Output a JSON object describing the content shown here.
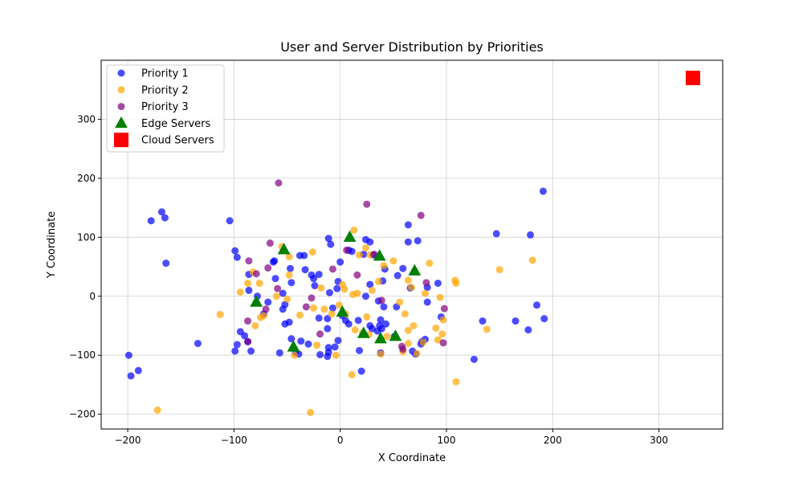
{
  "chart_data": {
    "type": "scatter",
    "title": "User and Server Distribution by Priorities",
    "xlabel": "X Coordinate",
    "ylabel": "Y Coordinate",
    "xlim": [
      -225,
      360
    ],
    "ylim": [
      -225,
      400
    ],
    "x_ticks": [
      -200,
      -100,
      0,
      100,
      200,
      300
    ],
    "y_ticks": [
      -200,
      -100,
      0,
      100,
      200,
      300
    ],
    "grid": true,
    "legend_position": "top-left",
    "series": [
      {
        "name": "Priority 1",
        "marker": "circle",
        "color": "#0000ff",
        "points": [
          [
            -199,
            -100
          ],
          [
            -197,
            -135
          ],
          [
            -190,
            -126
          ],
          [
            -178,
            128
          ],
          [
            -168,
            143
          ],
          [
            -165,
            133
          ],
          [
            -164,
            56
          ],
          [
            -134,
            -80
          ],
          [
            -104,
            128
          ],
          [
            -99,
            77
          ],
          [
            -97,
            66
          ],
          [
            -99,
            -93
          ],
          [
            -97,
            -82
          ],
          [
            -94,
            -60
          ],
          [
            -90,
            -67
          ],
          [
            -87,
            -77
          ],
          [
            -84,
            -93
          ],
          [
            -86,
            10
          ],
          [
            -86,
            37
          ],
          [
            -78,
            0
          ],
          [
            -72,
            -30
          ],
          [
            -68,
            -10
          ],
          [
            -63,
            58
          ],
          [
            -62,
            60
          ],
          [
            -61,
            30
          ],
          [
            -57,
            -96
          ],
          [
            -54,
            -22
          ],
          [
            -54,
            5
          ],
          [
            -52,
            -14
          ],
          [
            -52,
            -47
          ],
          [
            -48,
            -44
          ],
          [
            -47,
            47
          ],
          [
            -46,
            23
          ],
          [
            -46,
            -72
          ],
          [
            -42,
            -95
          ],
          [
            -39,
            -98
          ],
          [
            -38,
            69
          ],
          [
            -37,
            -76
          ],
          [
            -34,
            69
          ],
          [
            -33,
            45
          ],
          [
            -30,
            -81
          ],
          [
            -27,
            36
          ],
          [
            -25,
            30
          ],
          [
            -24,
            18
          ],
          [
            -20,
            37
          ],
          [
            -20,
            -37
          ],
          [
            -19,
            -99
          ],
          [
            -12,
            -102
          ],
          [
            -11,
            -95
          ],
          [
            -11,
            -87
          ],
          [
            -12,
            -55
          ],
          [
            -12,
            -38
          ],
          [
            -11,
            98
          ],
          [
            -9,
            88
          ],
          [
            -10,
            6
          ],
          [
            -7,
            -20
          ],
          [
            -5,
            -86
          ],
          [
            -3,
            13
          ],
          [
            -2,
            25
          ],
          [
            -2,
            -75
          ],
          [
            0,
            58
          ],
          [
            2,
            -33
          ],
          [
            5,
            -41
          ],
          [
            8,
            -47
          ],
          [
            8,
            78
          ],
          [
            11,
            76
          ],
          [
            17,
            -41
          ],
          [
            18,
            -92
          ],
          [
            20,
            -127
          ],
          [
            22,
            71
          ],
          [
            24,
            96
          ],
          [
            24,
            0
          ],
          [
            28,
            92
          ],
          [
            28,
            20
          ],
          [
            28,
            -50
          ],
          [
            30,
            -55
          ],
          [
            31,
            70
          ],
          [
            35,
            -59
          ],
          [
            36,
            -8
          ],
          [
            37,
            -50
          ],
          [
            38,
            -96
          ],
          [
            38,
            -40
          ],
          [
            39,
            -55
          ],
          [
            40,
            26
          ],
          [
            41,
            -18
          ],
          [
            42,
            46
          ],
          [
            43,
            -47
          ],
          [
            51,
            -68
          ],
          [
            53,
            -18
          ],
          [
            54,
            35
          ],
          [
            59,
            47
          ],
          [
            64,
            92
          ],
          [
            64,
            121
          ],
          [
            66,
            14
          ],
          [
            68,
            -93
          ],
          [
            71,
            -98
          ],
          [
            73,
            94
          ],
          [
            76,
            -81
          ],
          [
            77,
            -77
          ],
          [
            80,
            -73
          ],
          [
            82,
            15
          ],
          [
            82,
            -10
          ],
          [
            92,
            22
          ],
          [
            95,
            -35
          ],
          [
            126,
            -107
          ],
          [
            134,
            -42
          ],
          [
            147,
            106
          ],
          [
            165,
            -42
          ],
          [
            177,
            -57
          ],
          [
            179,
            104
          ],
          [
            185,
            -15
          ],
          [
            191,
            178
          ],
          [
            192,
            -38
          ]
        ]
      },
      {
        "name": "Priority 2",
        "marker": "circle",
        "color": "#ffa500",
        "points": [
          [
            -172,
            -193
          ],
          [
            -113,
            -31
          ],
          [
            -94,
            7
          ],
          [
            -87,
            22
          ],
          [
            -82,
            41
          ],
          [
            -80,
            -50
          ],
          [
            -76,
            22
          ],
          [
            -75,
            -36
          ],
          [
            -72,
            -33
          ],
          [
            -60,
            0
          ],
          [
            -55,
            84
          ],
          [
            -50,
            -5
          ],
          [
            -48,
            67
          ],
          [
            -48,
            36
          ],
          [
            -43,
            -100
          ],
          [
            -38,
            -32
          ],
          [
            -28,
            -197
          ],
          [
            -26,
            75
          ],
          [
            -25,
            -20
          ],
          [
            -22,
            -83
          ],
          [
            -18,
            14
          ],
          [
            -15,
            -22
          ],
          [
            -8,
            -30
          ],
          [
            -4,
            -100
          ],
          [
            -1,
            -15
          ],
          [
            2,
            20
          ],
          [
            4,
            12
          ],
          [
            5,
            -30
          ],
          [
            11,
            -133
          ],
          [
            12,
            3
          ],
          [
            13,
            112
          ],
          [
            14,
            -57
          ],
          [
            16,
            5
          ],
          [
            18,
            70
          ],
          [
            21,
            -62
          ],
          [
            24,
            82
          ],
          [
            25,
            -35
          ],
          [
            27,
            -65
          ],
          [
            28,
            70
          ],
          [
            30,
            10
          ],
          [
            36,
            25
          ],
          [
            38,
            -98
          ],
          [
            41,
            52
          ],
          [
            44,
            -68
          ],
          [
            50,
            60
          ],
          [
            56,
            -10
          ],
          [
            59,
            -94
          ],
          [
            61,
            -30
          ],
          [
            64,
            -58
          ],
          [
            64,
            -80
          ],
          [
            64,
            27
          ],
          [
            67,
            15
          ],
          [
            69,
            -50
          ],
          [
            72,
            -97
          ],
          [
            78,
            -78
          ],
          [
            80,
            5
          ],
          [
            84,
            56
          ],
          [
            90,
            -54
          ],
          [
            92,
            -74
          ],
          [
            94,
            -2
          ],
          [
            96,
            -64
          ],
          [
            97,
            -40
          ],
          [
            108,
            27
          ],
          [
            109,
            22
          ],
          [
            109,
            -145
          ],
          [
            138,
            -56
          ],
          [
            150,
            45
          ],
          [
            181,
            61
          ]
        ]
      },
      {
        "name": "Priority 3",
        "marker": "circle",
        "color": "#800080",
        "points": [
          [
            -87,
            -77
          ],
          [
            -87,
            -42
          ],
          [
            -86,
            60
          ],
          [
            -79,
            38
          ],
          [
            -70,
            -22
          ],
          [
            -68,
            48
          ],
          [
            -66,
            90
          ],
          [
            -59,
            13
          ],
          [
            -58,
            192
          ],
          [
            -32,
            -18
          ],
          [
            -27,
            -3
          ],
          [
            -19,
            -64
          ],
          [
            -7,
            46
          ],
          [
            6,
            78
          ],
          [
            16,
            36
          ],
          [
            25,
            156
          ],
          [
            32,
            71
          ],
          [
            39,
            -7
          ],
          [
            58,
            -85
          ],
          [
            59,
            -90
          ],
          [
            76,
            137
          ],
          [
            81,
            23
          ],
          [
            97,
            -79
          ],
          [
            98,
            -21
          ]
        ]
      },
      {
        "name": "Edge Servers",
        "marker": "triangle",
        "color": "#008000",
        "points": [
          [
            -53,
            79
          ],
          [
            -79,
            -10
          ],
          [
            -44,
            -86
          ],
          [
            2,
            -27
          ],
          [
            9,
            100
          ],
          [
            22,
            -63
          ],
          [
            37,
            68
          ],
          [
            38,
            -72
          ],
          [
            52,
            -68
          ],
          [
            70,
            43
          ]
        ]
      },
      {
        "name": "Cloud Servers",
        "marker": "square",
        "color": "#ff0000",
        "points": [
          [
            332,
            370
          ]
        ]
      }
    ]
  }
}
